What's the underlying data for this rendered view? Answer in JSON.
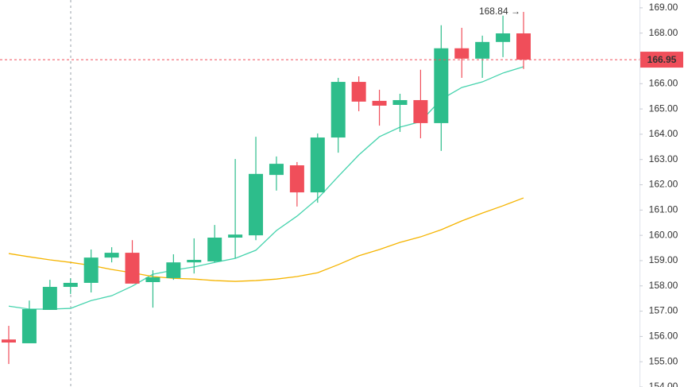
{
  "chart_data": {
    "type": "candlestick",
    "open": [
      155.88,
      155.73,
      157.05,
      157.96,
      158.12,
      159.12,
      159.31,
      158.15,
      158.31,
      158.93,
      158.97,
      159.91,
      160.0,
      162.39,
      162.77,
      161.7,
      163.87,
      166.07,
      165.32,
      165.16,
      165.35,
      164.44,
      167.4,
      166.99,
      167.65,
      167.99
    ],
    "high": [
      156.42,
      157.42,
      158.24,
      158.3,
      159.44,
      159.53,
      159.81,
      158.62,
      159.25,
      159.88,
      160.41,
      163.02,
      163.9,
      163.12,
      162.9,
      164.03,
      166.23,
      166.29,
      165.76,
      165.6,
      166.55,
      168.31,
      168.21,
      167.9,
      168.69,
      168.84
    ],
    "low": [
      154.91,
      155.73,
      157.05,
      157.68,
      157.74,
      158.93,
      158.09,
      157.14,
      158.24,
      158.49,
      158.93,
      159.09,
      159.81,
      161.77,
      161.14,
      161.29,
      163.27,
      164.91,
      164.34,
      164.09,
      163.84,
      163.34,
      166.23,
      166.23,
      167.05,
      166.58
    ],
    "close": [
      155.76,
      157.08,
      157.96,
      158.12,
      159.12,
      159.31,
      158.09,
      158.34,
      158.93,
      159.03,
      159.91,
      160.03,
      162.43,
      162.83,
      161.7,
      163.87,
      166.07,
      165.29,
      165.13,
      165.35,
      164.44,
      167.4,
      166.99,
      167.65,
      167.99,
      166.95
    ],
    "up_color": "#2dbd8b",
    "down_color": "#f04e5a",
    "moving_averages": [
      {
        "color": "#45d3ad",
        "values": [
          157.2,
          157.08,
          157.08,
          157.11,
          157.42,
          157.61,
          157.99,
          158.46,
          158.62,
          158.75,
          158.93,
          159.09,
          159.41,
          160.19,
          160.76,
          161.45,
          162.33,
          163.18,
          163.9,
          164.28,
          164.5,
          165.38,
          165.85,
          166.07,
          166.42,
          166.67
        ]
      },
      {
        "color": "#f5b400",
        "values": [
          159.28,
          159.15,
          159.03,
          158.93,
          158.81,
          158.65,
          158.52,
          158.37,
          158.3,
          158.27,
          158.21,
          158.18,
          158.21,
          158.27,
          158.37,
          158.52,
          158.84,
          159.19,
          159.44,
          159.72,
          159.94,
          160.22,
          160.57,
          160.88,
          161.17,
          161.48
        ]
      }
    ],
    "last_price": 166.95,
    "high_annotation": "168.84 →",
    "ylim": [
      154.0,
      169.31
    ],
    "yticks": [
      {
        "value": 154,
        "label": "154.00"
      },
      {
        "value": 155,
        "label": "155.00"
      },
      {
        "value": 156,
        "label": "156.00"
      },
      {
        "value": 157,
        "label": "157.00"
      },
      {
        "value": 158,
        "label": "158.00"
      },
      {
        "value": 159,
        "label": "159.00"
      },
      {
        "value": 160,
        "label": "160.00"
      },
      {
        "value": 161,
        "label": "161.00"
      },
      {
        "value": 162,
        "label": "162.00"
      },
      {
        "value": 163,
        "label": "163.00"
      },
      {
        "value": 164,
        "label": "164.00"
      },
      {
        "value": 165,
        "label": "165.00"
      },
      {
        "value": 166,
        "label": "166.00"
      },
      {
        "value": 167,
        "label": "167.00"
      },
      {
        "value": 168,
        "label": "168.00"
      },
      {
        "value": 169,
        "label": "169.00"
      }
    ]
  }
}
